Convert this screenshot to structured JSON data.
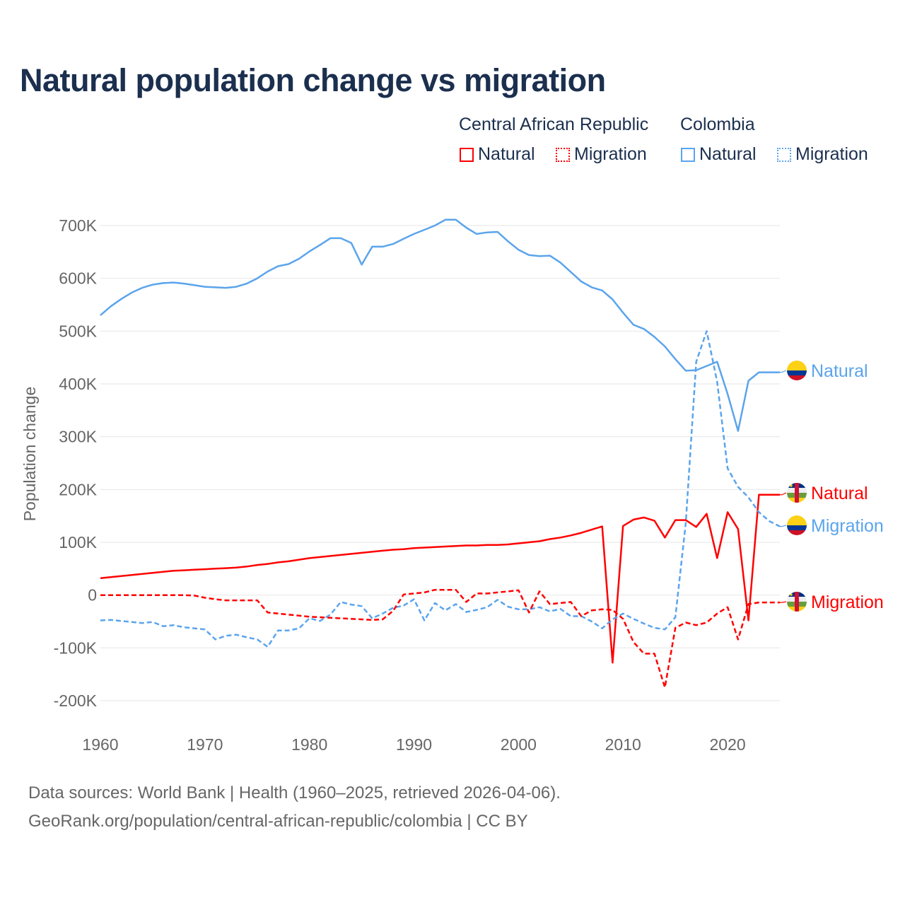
{
  "title": "Natural population change vs migration",
  "legend": {
    "groups": [
      {
        "name": "Central African Republic",
        "items": [
          "Natural",
          "Migration"
        ],
        "color": "#ff0000"
      },
      {
        "name": "Colombia",
        "items": [
          "Natural",
          "Migration"
        ],
        "color": "#5ba4ec"
      }
    ]
  },
  "footer": {
    "line1": "Data sources: World Bank | Health (1960–2025, retrieved 2026-04-06).",
    "line2": "GeoRank.org/population/central-african-republic/colombia | CC BY"
  },
  "chart_data": {
    "type": "line",
    "title": "Natural population change vs migration",
    "xlabel": "",
    "ylabel": "Population change",
    "xlim": [
      1960,
      2025
    ],
    "ylim": [
      -200000,
      700000
    ],
    "x_ticks": [
      1960,
      1970,
      1980,
      1990,
      2000,
      2010,
      2020
    ],
    "x_tick_labels": [
      "1960",
      "1970",
      "1980",
      "1990",
      "2000",
      "2010",
      "2020"
    ],
    "y_ticks": [
      -200000,
      -100000,
      0,
      100000,
      200000,
      300000,
      400000,
      500000,
      600000,
      700000
    ],
    "y_tick_labels": [
      "-200K",
      "-100K",
      "0",
      "100K",
      "200K",
      "300K",
      "400K",
      "500K",
      "600K",
      "700K"
    ],
    "grid": true,
    "legend_position": "top-right",
    "x_start": 1960,
    "series": [
      {
        "name": "Colombia Natural",
        "end_label": "Natural",
        "color": "#5ba4ec",
        "dash": "solid",
        "flag": "colombia",
        "values_k": [
          530,
          547,
          561,
          573,
          582,
          588,
          591,
          592,
          590,
          587,
          584,
          583,
          582,
          584,
          590,
          600,
          613,
          623,
          627,
          637,
          651,
          663,
          676,
          676,
          667,
          626,
          660,
          660,
          665,
          675,
          684,
          692,
          700,
          711,
          711,
          696,
          684,
          687,
          688,
          670,
          654,
          644,
          642,
          643,
          630,
          612,
          594,
          583,
          577,
          560,
          535,
          512,
          504,
          489,
          471,
          447,
          425,
          426,
          434,
          442,
          381,
          311,
          406,
          422,
          422,
          422
        ]
      },
      {
        "name": "Central African Republic Natural",
        "end_label": "Natural",
        "color": "#ff0000",
        "dash": "solid",
        "flag": "car",
        "values_k": [
          32,
          34,
          36,
          38,
          40,
          42,
          44,
          46,
          47,
          48,
          49,
          50,
          51,
          52,
          54,
          57,
          59,
          62,
          64,
          67,
          70,
          72,
          74,
          76,
          78,
          80,
          82,
          84,
          86,
          87,
          89,
          90,
          91,
          92,
          93,
          94,
          94,
          95,
          95,
          96,
          98,
          100,
          102,
          106,
          109,
          113,
          118,
          124,
          130,
          -128,
          131,
          143,
          147,
          141,
          109,
          142,
          142,
          129,
          154,
          70,
          157,
          125,
          -48,
          190,
          190,
          190
        ]
      },
      {
        "name": "Colombia Migration",
        "end_label": "Migration",
        "color": "#5ba4ec",
        "dash": "dashed",
        "flag": "colombia",
        "values_k": [
          -48,
          -47,
          -49,
          -51,
          -53,
          -51,
          -59,
          -57,
          -61,
          -63,
          -65,
          -84,
          -77,
          -75,
          -80,
          -84,
          -98,
          -67,
          -67,
          -63,
          -44,
          -49,
          -37,
          -13,
          -18,
          -21,
          -44,
          -35,
          -24,
          -20,
          -8,
          -48,
          -15,
          -29,
          -17,
          -32,
          -28,
          -23,
          -9,
          -22,
          -27,
          -27,
          -23,
          -31,
          -26,
          -40,
          -40,
          -50,
          -63,
          -46,
          -35,
          -45,
          -54,
          -62,
          -65,
          -42,
          136,
          442,
          500,
          404,
          240,
          205,
          185,
          157,
          140,
          130
        ]
      },
      {
        "name": "Central African Republic Migration",
        "end_label": "Migration",
        "color": "#ff0000",
        "dash": "dashed",
        "flag": "car",
        "values_k": [
          0,
          0,
          0,
          0,
          0,
          0,
          0,
          0,
          0,
          -1,
          -5,
          -8,
          -10,
          -10,
          -10,
          -10,
          -33,
          -35,
          -37,
          -39,
          -41,
          -42,
          -43,
          -44,
          -45,
          -46,
          -47,
          -46,
          -30,
          1,
          3,
          5,
          10,
          10,
          10,
          -13,
          3,
          3,
          5,
          7,
          9,
          -33,
          7,
          -17,
          -15,
          -13,
          -40,
          -29,
          -27,
          -28,
          -45,
          -89,
          -111,
          -111,
          -175,
          -62,
          -52,
          -57,
          -52,
          -35,
          -23,
          -84,
          -17,
          -14,
          -14,
          -14
        ]
      }
    ]
  }
}
